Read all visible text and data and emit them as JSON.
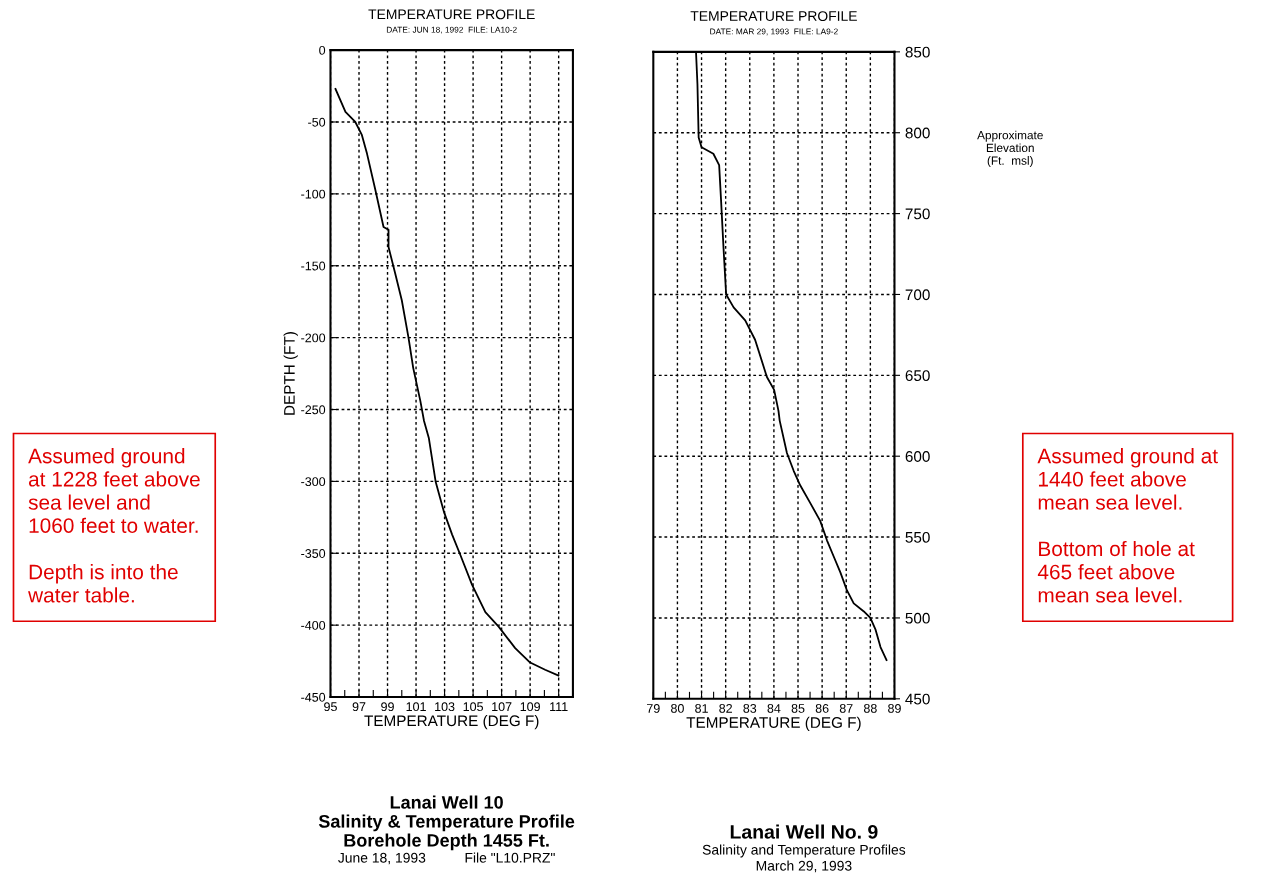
{
  "chart_data": [
    {
      "type": "line",
      "title": "TEMPERATURE PROFILE",
      "subtitle": "DATE: JUN 18, 1992  FILE: LA10-2",
      "xlabel": "TEMPERATURE (DEG F)",
      "ylabel": "DEPTH (FT)",
      "series": [
        {
          "color": "#000000",
          "x": [
            95.35,
            96.05,
            96.74,
            97.2,
            97.56,
            98.14,
            98.72,
            99.07,
            99.07,
            99.53,
            100.0,
            100.47,
            100.8,
            101.3,
            101.56,
            101.9,
            102.37,
            102.95,
            103.53,
            104.1,
            104.93,
            105.86,
            106.79,
            107.95,
            109.0,
            110.05,
            110.98
          ],
          "values": [
            -27,
            -43,
            -50,
            -59,
            -72,
            -97,
            -123,
            -125,
            -137,
            -155,
            -174,
            -200,
            -221,
            -244,
            -258,
            -270,
            -300,
            -321,
            -337,
            -351,
            -372,
            -391,
            -401,
            -416,
            -426,
            -431,
            -435
          ]
        }
      ],
      "xlim": [
        95,
        112
      ],
      "xticks": [
        95,
        {
          "value": 96,
          "label": null
        },
        97,
        {
          "value": 98,
          "label": null
        },
        99,
        {
          "value": 100,
          "label": null
        },
        101,
        {
          "value": 102,
          "label": null
        },
        103,
        {
          "value": 104,
          "label": null
        },
        105,
        {
          "value": 106,
          "label": null
        },
        107,
        {
          "value": 108,
          "label": null
        },
        109,
        {
          "value": 110,
          "label": null
        },
        111,
        {
          "value": 112,
          "label": null
        }
      ],
      "ylim": [
        -450,
        0
      ],
      "yticks": [
        -450,
        -400,
        -350,
        -300,
        -250,
        -200,
        -150,
        -100,
        -50,
        0
      ],
      "grid": true,
      "line_style": "solid",
      "marker": "none",
      "annotations": [
        "Assumed ground\nat 1228 feet above\nsea level and\n1060 feet to water.\n\nDepth is into the\nwater table.",
        "Lanai Well 10",
        "Salinity & Temperature Profile",
        "Borehole Depth 1455 Ft.",
        "June 18, 1993          File \"L10.PRZ\""
      ]
    },
    {
      "type": "line",
      "title": "TEMPERATURE PROFILE",
      "subtitle": "DATE: MAR 29, 1993  FILE: LA9-2",
      "xlabel": "TEMPERATURE (DEG F)",
      "ylabel": "Approximate\nElevation\n(Ft.  msl)",
      "series": [
        {
          "color": "#000000",
          "x": [
            80.77,
            80.83,
            80.88,
            81.0,
            81.49,
            81.73,
            81.81,
            81.91,
            82.02,
            82.33,
            82.81,
            83.22,
            83.71,
            84.01,
            84.19,
            84.24,
            84.54,
            84.82,
            85.09,
            85.51,
            85.92,
            86.2,
            86.48,
            86.76,
            87.03,
            87.31,
            87.73,
            88.0,
            88.21,
            88.42,
            88.67
          ],
          "values": [
            850,
            830,
            797,
            791,
            787,
            780,
            758,
            729,
            700,
            692,
            684,
            672,
            649,
            641,
            628,
            622,
            602,
            591,
            582,
            571,
            560,
            548,
            538,
            528,
            517,
            509,
            504,
            500,
            493,
            482,
            474
          ]
        }
      ],
      "xlim": [
        79,
        89
      ],
      "xticks": [
        79,
        {
          "value": 79.5,
          "label": null
        },
        80,
        {
          "value": 80.5,
          "label": null
        },
        81,
        {
          "value": 81.5,
          "label": null
        },
        82,
        {
          "value": 82.5,
          "label": null
        },
        83,
        {
          "value": 83.5,
          "label": null
        },
        84,
        {
          "value": 84.5,
          "label": null
        },
        85,
        {
          "value": 85.5,
          "label": null
        },
        86,
        {
          "value": 86.5,
          "label": null
        },
        87,
        {
          "value": 87.5,
          "label": null
        },
        88,
        {
          "value": 88.5,
          "label": null
        },
        89
      ],
      "ylim": [
        450,
        850
      ],
      "yticks": [
        450,
        500,
        550,
        600,
        650,
        700,
        750,
        800,
        850
      ],
      "grid": true,
      "line_style": "solid",
      "marker": "none",
      "annotations": [
        "Assumed ground at\n1440 feet above\nmean sea level.\n\nBottom of hole at\n465 feet above\nmean sea level.",
        "Lanai Well No. 9",
        "Salinity and Temperature Profiles",
        "March 29, 1993"
      ]
    }
  ]
}
